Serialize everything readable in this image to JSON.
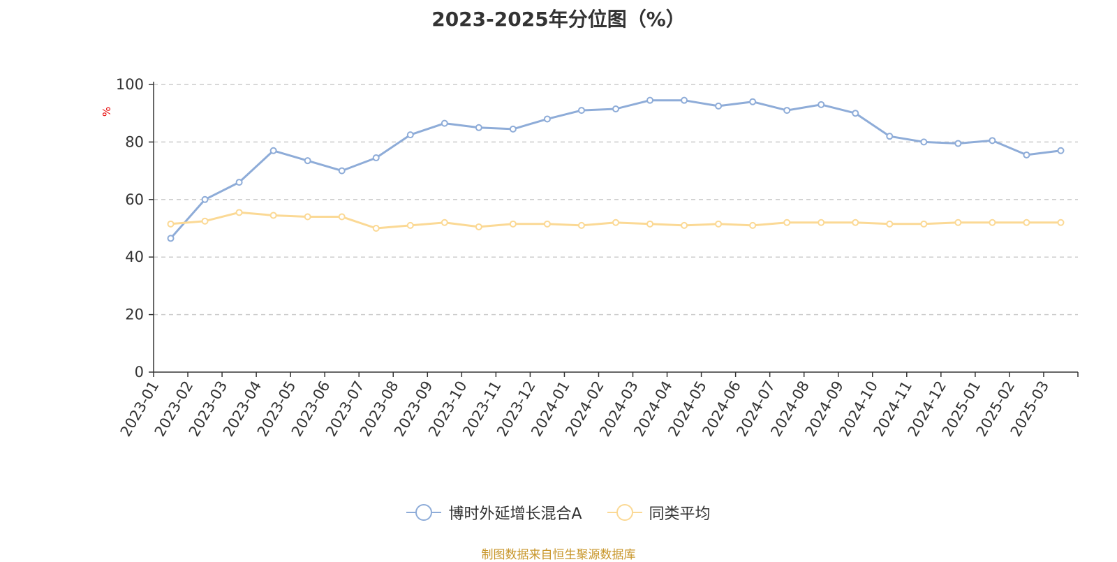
{
  "chart_data": {
    "type": "line",
    "title": "2023-2025年分位图（%）",
    "ylabel": "%",
    "xlabel": "",
    "ylim": [
      0,
      100
    ],
    "yticks": [
      0,
      20,
      40,
      60,
      80,
      100
    ],
    "grid": true,
    "legend_position": "bottom",
    "categories": [
      "2023-01",
      "2023-02",
      "2023-03",
      "2023-04",
      "2023-05",
      "2023-06",
      "2023-07",
      "2023-08",
      "2023-09",
      "2023-10",
      "2023-11",
      "2023-12",
      "2024-01",
      "2024-02",
      "2024-03",
      "2024-04",
      "2024-05",
      "2024-06",
      "2024-07",
      "2024-08",
      "2024-09",
      "2024-10",
      "2024-11",
      "2024-12",
      "2025-01",
      "2025-02",
      "2025-03"
    ],
    "series": [
      {
        "name": "博时外延增长混合A",
        "color": "#8eacd8",
        "values": [
          46.5,
          60,
          66,
          77,
          73.5,
          70,
          74.5,
          82.5,
          86.5,
          85,
          84.5,
          88,
          91,
          91.5,
          94.5,
          94.5,
          92.5,
          94,
          91,
          93,
          90,
          82,
          80,
          79.5,
          80.5,
          75.5,
          77
        ]
      },
      {
        "name": "同类平均",
        "color": "#fbd995",
        "values": [
          51.5,
          52.5,
          55.5,
          54.5,
          54,
          54,
          50,
          51,
          52,
          50.5,
          51.5,
          51.5,
          51,
          52,
          51.5,
          51,
          51.5,
          51,
          52,
          52,
          52,
          51.5,
          51.5,
          52,
          52,
          52,
          52
        ]
      }
    ]
  },
  "source_note": "制图数据来自恒生聚源数据库"
}
